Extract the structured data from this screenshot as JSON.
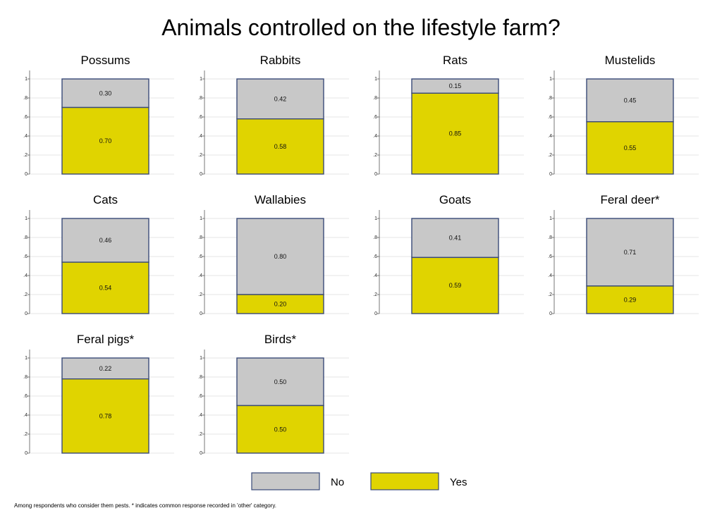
{
  "chart_data": {
    "type": "bar",
    "stacked": true,
    "title": "Animals controlled on the lifestyle farm?",
    "note": "Among respondents who consider them pests. * indicates common response recorded in 'other' category.",
    "ylim": [
      0,
      1
    ],
    "yticks": [
      "0",
      ".2",
      ".4",
      ".6",
      ".8",
      "1"
    ],
    "grid": true,
    "legend": {
      "placement": "bottom-center",
      "entries": [
        {
          "name": "No",
          "color": "#c8c8c8"
        },
        {
          "name": "Yes",
          "color": "#e0d400"
        }
      ]
    },
    "colors": {
      "no": "#c8c8c8",
      "yes": "#e0d400",
      "border": "#3a4a78"
    },
    "panels": [
      {
        "title": "Possums",
        "no": 0.3,
        "yes": 0.7,
        "no_label": "0.30",
        "yes_label": "0.70"
      },
      {
        "title": "Rabbits",
        "no": 0.42,
        "yes": 0.58,
        "no_label": "0.42",
        "yes_label": "0.58"
      },
      {
        "title": "Rats",
        "no": 0.15,
        "yes": 0.85,
        "no_label": "0.15",
        "yes_label": "0.85"
      },
      {
        "title": "Mustelids",
        "no": 0.45,
        "yes": 0.55,
        "no_label": "0.45",
        "yes_label": "0.55"
      },
      {
        "title": "Cats",
        "no": 0.46,
        "yes": 0.54,
        "no_label": "0.46",
        "yes_label": "0.54"
      },
      {
        "title": "Wallabies",
        "no": 0.8,
        "yes": 0.2,
        "no_label": "0.80",
        "yes_label": "0.20"
      },
      {
        "title": "Goats",
        "no": 0.41,
        "yes": 0.59,
        "no_label": "0.41",
        "yes_label": "0.59"
      },
      {
        "title": "Feral deer*",
        "no": 0.71,
        "yes": 0.29,
        "no_label": "0.71",
        "yes_label": "0.29"
      },
      {
        "title": "Feral pigs*",
        "no": 0.22,
        "yes": 0.78,
        "no_label": "0.22",
        "yes_label": "0.78"
      },
      {
        "title": "Birds*",
        "no": 0.5,
        "yes": 0.5,
        "no_label": "0.50",
        "yes_label": "0.50"
      }
    ]
  }
}
